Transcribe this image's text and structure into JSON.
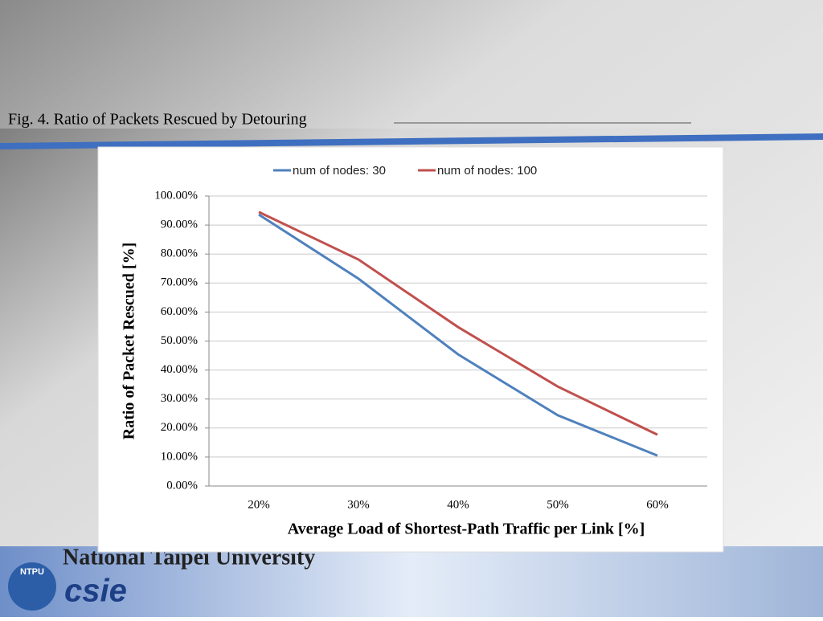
{
  "caption": "Fig. 4. Ratio of Packets Rescued by Detouring",
  "chart_data": {
    "type": "line",
    "x_label": "Average Load of Shortest-Path Traffic per Link [%]",
    "y_label": "Ratio of Packet Rescued [%]",
    "categories": [
      "20%",
      "30%",
      "40%",
      "50%",
      "60%"
    ],
    "series": [
      {
        "name": "num of nodes: 30",
        "color": "#4f81bd",
        "values": [
          93.6,
          71.5,
          45.4,
          24.4,
          10.5
        ]
      },
      {
        "name": "num of nodes: 100",
        "color": "#c0504d",
        "values": [
          94.5,
          78.1,
          54.8,
          34.3,
          17.7
        ]
      }
    ],
    "ylim": [
      0,
      100
    ],
    "yticks": [
      {
        "value": 0,
        "label": "0.00%"
      },
      {
        "value": 10,
        "label": "10.00%"
      },
      {
        "value": 20,
        "label": "20.00%"
      },
      {
        "value": 30,
        "label": "30.00%"
      },
      {
        "value": 40,
        "label": "40.00%"
      },
      {
        "value": 50,
        "label": "50.00%"
      },
      {
        "value": 60,
        "label": "60.00%"
      },
      {
        "value": 70,
        "label": "70.00%"
      },
      {
        "value": 80,
        "label": "80.00%"
      },
      {
        "value": 90,
        "label": "90.00%"
      },
      {
        "value": 100,
        "label": "100.00%"
      }
    ],
    "grid": true,
    "legend": "top"
  },
  "footer": {
    "university": "National Taipei University",
    "logo": "csie",
    "badge": "NTPU"
  }
}
